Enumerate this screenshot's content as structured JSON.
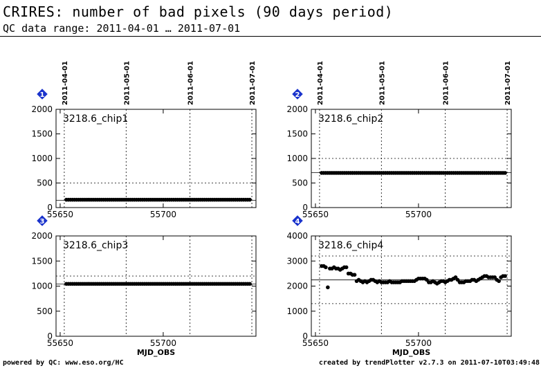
{
  "header": {
    "title": "CRIRES: number of bad pixels (90 days period)",
    "subtitle": "QC data range: 2011-04-01 … 2011-07-01"
  },
  "footer": {
    "left": "powered by QC: www.eso.org/HC",
    "right": "created by trendPlotter v2.7.3 on 2011-07-10T03:49:48"
  },
  "colors": {
    "marker_badge": "#1a33cc",
    "points": "#000000",
    "axes": "#000000"
  },
  "icons": {
    "panel_badge": "blue-diamond-number-icon"
  },
  "chart_data": [
    {
      "type": "scatter",
      "panel": "1",
      "label": "3218.6_chip1",
      "xlim": [
        55648,
        55745
      ],
      "ylim": [
        0,
        2000
      ],
      "yticks": [
        0,
        500,
        1000,
        1500,
        2000
      ],
      "xticks": [
        55650,
        55700
      ],
      "xtick_labels": [
        "55650",
        "55700"
      ],
      "date_ticks": [
        55652,
        55682,
        55713,
        55743
      ],
      "date_labels": [
        "2011-04-01",
        "2011-05-01",
        "2011-06-01",
        "2011-07-01"
      ],
      "xlabel": "",
      "ref_line": 150,
      "limit_lines": [
        500
      ],
      "series": [
        {
          "x_start": 55653,
          "x_end": 55742,
          "values": [
            160,
            160,
            160,
            160,
            160,
            160,
            160,
            160,
            160,
            160,
            160,
            160,
            160,
            160,
            160,
            160,
            160,
            160,
            160,
            160,
            160,
            160,
            160,
            160,
            160,
            160,
            160,
            160,
            160,
            160,
            160,
            160,
            160,
            160,
            160,
            160,
            160,
            160,
            160,
            160,
            160,
            160,
            160,
            160,
            160,
            160,
            160,
            160,
            160,
            160,
            160,
            160,
            160,
            160,
            160,
            160,
            160,
            160,
            160,
            160,
            160,
            160,
            160,
            160,
            160,
            160,
            160,
            160,
            160,
            160,
            160,
            160,
            160,
            160,
            160,
            160,
            160,
            160,
            160,
            160,
            160,
            160,
            160,
            160,
            160,
            160,
            160,
            160,
            160,
            160
          ]
        }
      ]
    },
    {
      "type": "scatter",
      "panel": "2",
      "label": "3218.6_chip2",
      "xlim": [
        55648,
        55745
      ],
      "ylim": [
        0,
        2000
      ],
      "yticks": [
        0,
        500,
        1000,
        1500,
        2000
      ],
      "xticks": [
        55650,
        55700
      ],
      "xtick_labels": [
        "55650",
        "55700"
      ],
      "date_ticks": [
        55652,
        55682,
        55713,
        55743
      ],
      "date_labels": [
        "2011-04-01",
        "2011-05-01",
        "2011-06-01",
        "2011-07-01"
      ],
      "xlabel": "",
      "ref_line": 710,
      "limit_lines": [
        1000
      ],
      "series": [
        {
          "x_start": 55653,
          "x_end": 55742,
          "values": [
            705,
            705,
            705,
            705,
            705,
            705,
            705,
            705,
            705,
            705,
            705,
            705,
            705,
            705,
            705,
            705,
            705,
            705,
            705,
            705,
            705,
            705,
            705,
            705,
            705,
            705,
            705,
            705,
            705,
            705,
            705,
            705,
            705,
            705,
            705,
            705,
            705,
            705,
            705,
            705,
            705,
            705,
            705,
            705,
            705,
            705,
            705,
            705,
            705,
            705,
            705,
            705,
            705,
            705,
            705,
            705,
            705,
            705,
            705,
            705,
            705,
            705,
            705,
            705,
            705,
            705,
            705,
            705,
            705,
            705,
            705,
            705,
            705,
            705,
            705,
            705,
            705,
            705,
            705,
            705,
            705,
            705,
            705,
            705,
            705,
            705,
            705,
            705,
            705,
            705
          ]
        }
      ]
    },
    {
      "type": "scatter",
      "panel": "3",
      "label": "3218.6_chip3",
      "xlim": [
        55648,
        55745
      ],
      "ylim": [
        0,
        2000
      ],
      "yticks": [
        0,
        500,
        1000,
        1500,
        2000
      ],
      "xticks": [
        55650,
        55700
      ],
      "xtick_labels": [
        "55650",
        "55700"
      ],
      "date_ticks": [
        55652,
        55682,
        55713,
        55743
      ],
      "date_labels": [],
      "xlabel": "MJD_OBS",
      "ref_line": 1040,
      "limit_lines": [
        1200
      ],
      "series": [
        {
          "x_start": 55653,
          "x_end": 55742,
          "values": [
            1045,
            1045,
            1045,
            1045,
            1045,
            1045,
            1045,
            1045,
            1045,
            1045,
            1045,
            1045,
            1045,
            1045,
            1045,
            1045,
            1045,
            1045,
            1045,
            1045,
            1045,
            1045,
            1045,
            1045,
            1045,
            1045,
            1045,
            1045,
            1045,
            1045,
            1045,
            1045,
            1045,
            1045,
            1045,
            1045,
            1045,
            1045,
            1045,
            1045,
            1045,
            1045,
            1045,
            1045,
            1045,
            1045,
            1045,
            1045,
            1045,
            1045,
            1045,
            1045,
            1045,
            1045,
            1045,
            1045,
            1045,
            1045,
            1045,
            1045,
            1045,
            1045,
            1045,
            1045,
            1045,
            1045,
            1045,
            1045,
            1045,
            1045,
            1045,
            1045,
            1045,
            1045,
            1045,
            1045,
            1045,
            1045,
            1045,
            1045,
            1045,
            1045,
            1045,
            1045,
            1045,
            1045,
            1045,
            1045,
            1045,
            1045
          ]
        }
      ]
    },
    {
      "type": "scatter",
      "panel": "4",
      "label": "3218.6_chip4",
      "xlim": [
        55648,
        55745
      ],
      "ylim": [
        0,
        4000
      ],
      "yticks": [
        0,
        1000,
        2000,
        3000,
        4000
      ],
      "xticks": [
        55650,
        55700
      ],
      "xtick_labels": [
        "55650",
        "55700"
      ],
      "date_ticks": [
        55652,
        55682,
        55713,
        55743
      ],
      "date_labels": [],
      "xlabel": "MJD_OBS",
      "ref_line": 2250,
      "limit_lines": [
        1300,
        3200
      ],
      "series": [
        {
          "x_start": 55653,
          "x_end": 55742,
          "values": [
            2800,
            2800,
            2750,
            1950,
            2700,
            2700,
            2750,
            2700,
            2700,
            2650,
            2700,
            2750,
            2750,
            2500,
            2500,
            2450,
            2450,
            2200,
            2250,
            2200,
            2150,
            2200,
            2150,
            2200,
            2250,
            2250,
            2200,
            2150,
            2200,
            2150,
            2150,
            2150,
            2150,
            2200,
            2150,
            2150,
            2150,
            2150,
            2150,
            2200,
            2200,
            2200,
            2200,
            2200,
            2200,
            2200,
            2250,
            2300,
            2300,
            2300,
            2300,
            2250,
            2150,
            2150,
            2200,
            2150,
            2100,
            2150,
            2200,
            2200,
            2150,
            2200,
            2250,
            2250,
            2300,
            2350,
            2250,
            2150,
            2150,
            2150,
            2200,
            2200,
            2200,
            2250,
            2250,
            2200,
            2250,
            2300,
            2350,
            2400,
            2400,
            2350,
            2350,
            2350,
            2350,
            2250,
            2200,
            2350,
            2400,
            2400
          ]
        }
      ]
    }
  ]
}
